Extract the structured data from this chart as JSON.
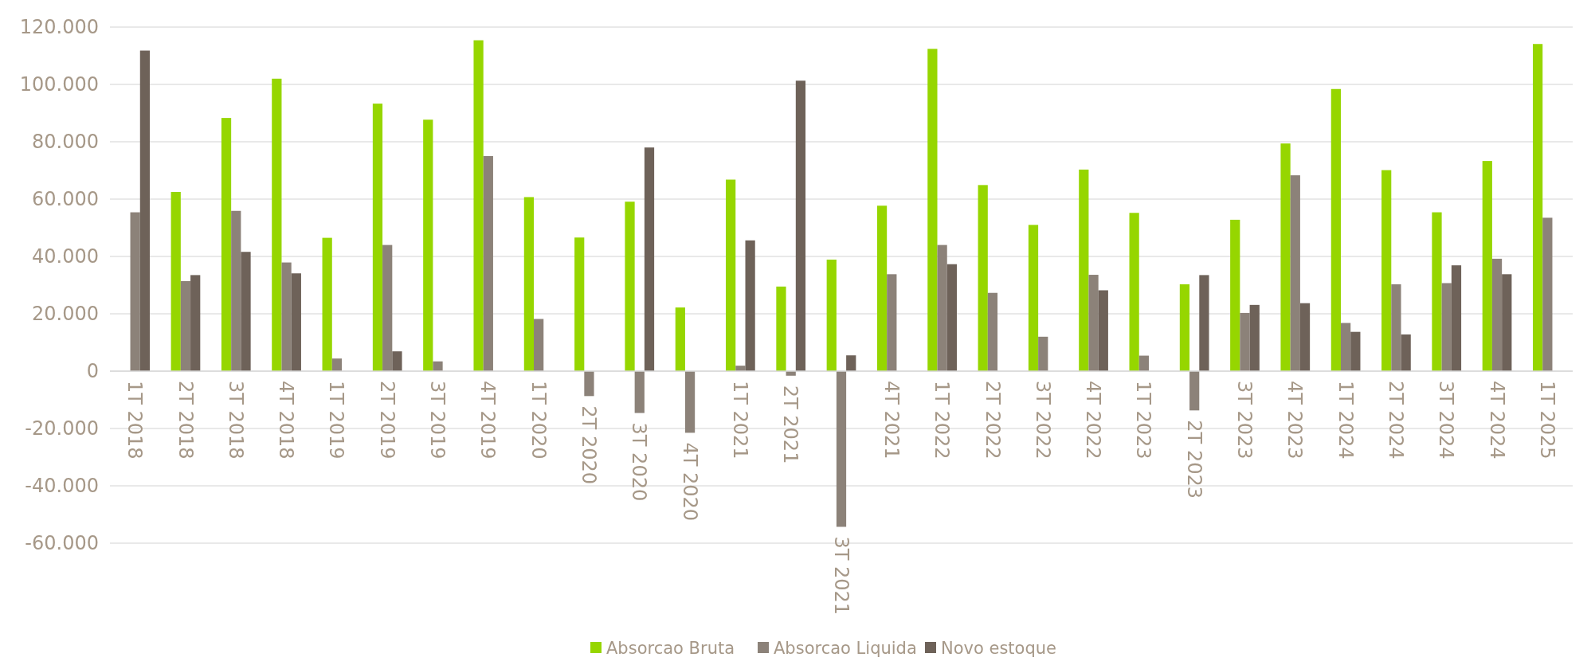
{
  "chart_data": {
    "type": "bar",
    "categories": [
      "1T 2018",
      "2T 2018",
      "3T 2018",
      "4T 2018",
      "1T 2019",
      "2T 2019",
      "3T 2019",
      "4T 2019",
      "1T 2020",
      "2T 2020",
      "3T 2020",
      "4T 2020",
      "1T 2021",
      "2T 2021",
      "3T 2021",
      "4T 2021",
      "1T 2022",
      "2T 2022",
      "3T 2022",
      "4T 2022",
      "1T 2023",
      "2T 2023",
      "3T 2023",
      "4T 2023",
      "1T 2024",
      "2T 2024",
      "3T 2024",
      "4T 2024",
      "1T 2025"
    ],
    "series": [
      {
        "name": "Absorcao Bruta",
        "color": "#96d600",
        "values": [
          null,
          62500,
          88300,
          102000,
          46500,
          93300,
          87700,
          115400,
          60700,
          46600,
          59100,
          22200,
          66800,
          29500,
          38900,
          57700,
          112400,
          64900,
          51000,
          70300,
          55200,
          30300,
          52800,
          79400,
          98400,
          70100,
          55400,
          73300,
          114100
        ]
      },
      {
        "name": "Absorcao Liquida",
        "color": "#8c8279",
        "values": [
          55400,
          31400,
          55900,
          37900,
          4400,
          44000,
          3400,
          75000,
          18200,
          -8700,
          -14600,
          -21500,
          1900,
          -1600,
          -54300,
          33800,
          44000,
          27300,
          12000,
          33600,
          5400,
          -13700,
          20300,
          68300,
          16800,
          30300,
          30700,
          39200,
          53500
        ]
      },
      {
        "name": "Novo estoque",
        "color": "#6e6259",
        "values": [
          111800,
          33500,
          41600,
          34100,
          null,
          6900,
          null,
          null,
          null,
          null,
          78000,
          null,
          45600,
          101300,
          5500,
          null,
          37300,
          null,
          null,
          28200,
          null,
          33500,
          23100,
          23700,
          13700,
          12800,
          36900,
          33800,
          null
        ]
      }
    ],
    "ylim": [
      -60000,
      120000
    ],
    "yticks": [
      {
        "value": -60000,
        "label": "-60.000"
      },
      {
        "value": -40000,
        "label": "-40.000"
      },
      {
        "value": -20000,
        "label": "-20.000"
      },
      0,
      {
        "value": 20000,
        "label": "20.000"
      },
      {
        "value": 40000,
        "label": "40.000"
      },
      {
        "value": 60000,
        "label": "60.000"
      },
      {
        "value": 80000,
        "label": "80.000"
      },
      {
        "value": 100000,
        "label": "100.000"
      },
      {
        "value": 120000,
        "label": "120.000"
      }
    ],
    "grid": "y",
    "legend": "bottom"
  }
}
